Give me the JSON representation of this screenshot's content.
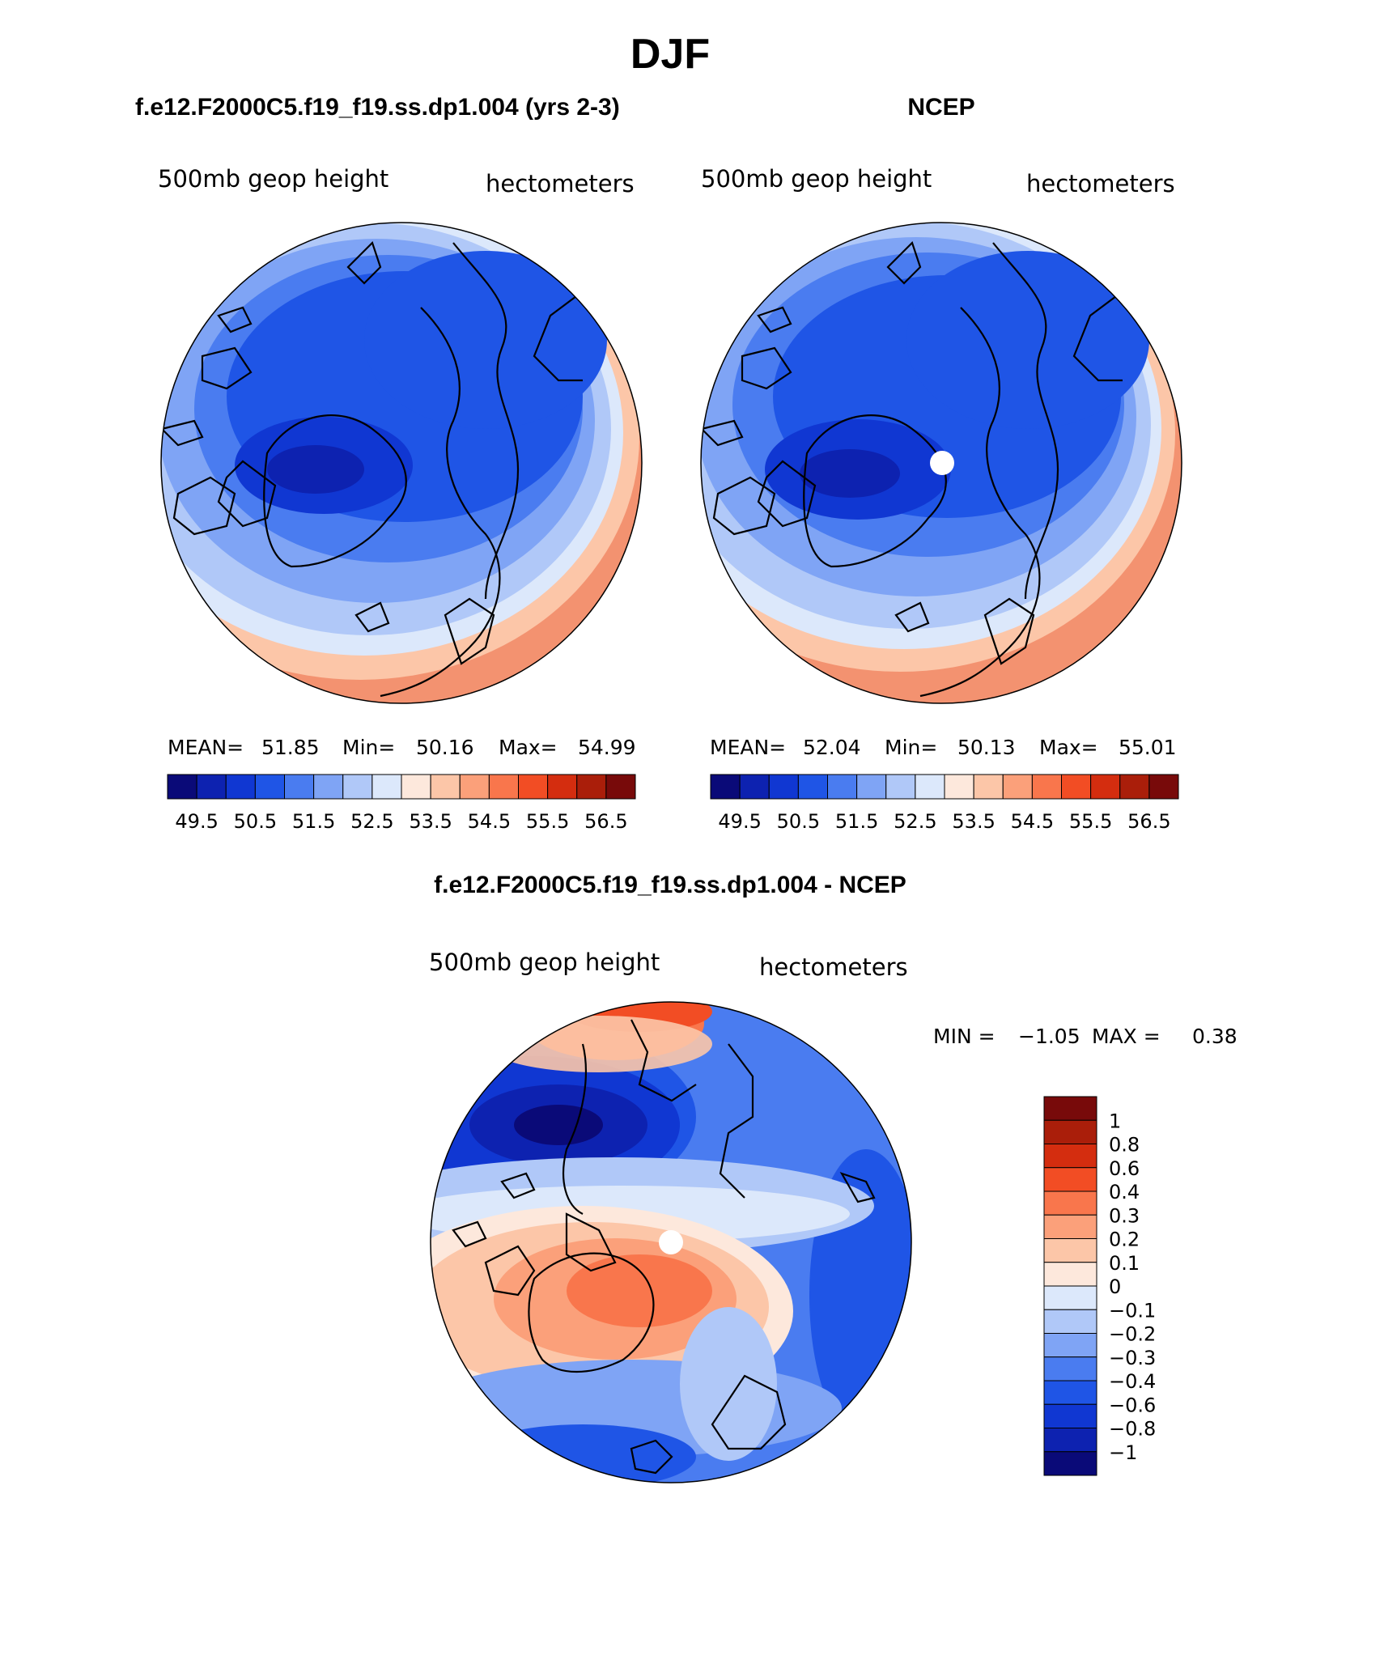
{
  "figure": {
    "season": "DJF",
    "colors": {
      "coast": "#000000",
      "pole_marker": "#ffffff",
      "border": "#000000"
    }
  },
  "panels": {
    "model": {
      "title": "f.e12.F2000C5.f19_f19.ss.dp1.004 (yrs 2-3)",
      "variable": "500mb geop height",
      "units": "hectometers",
      "stats": {
        "mean_label": "MEAN=",
        "mean": "51.85",
        "min_label": "Min=",
        "min": "50.16",
        "max_label": "Max=",
        "max": "54.99"
      }
    },
    "ncep": {
      "title": "NCEP",
      "variable": "500mb geop height",
      "units": "hectometers",
      "stats": {
        "mean_label": "MEAN=",
        "mean": "52.04",
        "min_label": "Min=",
        "min": "50.13",
        "max_label": "Max=",
        "max": "55.01"
      }
    },
    "diff": {
      "title": "f.e12.F2000C5.f19_f19.ss.dp1.004 - NCEP",
      "variable": "500mb geop height",
      "units": "hectometers",
      "stats": {
        "min_label": "MIN =",
        "min": "−1.05",
        "max_label": "MAX =",
        "max": "0.38"
      }
    }
  },
  "colorbars": {
    "absolute": {
      "colors": [
        "#0a0a78",
        "#0d22b0",
        "#1037d2",
        "#1f55e6",
        "#4a7cf0",
        "#7fa4f5",
        "#b0c8f8",
        "#dce8fb",
        "#fde8dc",
        "#fcc6a8",
        "#fba07a",
        "#f9764c",
        "#f24d24",
        "#d42d0f",
        "#aa1e0a",
        "#780a0a"
      ],
      "tick_labels": [
        "49.5",
        "50.5",
        "51.5",
        "52.5",
        "53.5",
        "54.5",
        "55.5",
        "56.5"
      ]
    },
    "difference": {
      "colors": [
        "#780a0a",
        "#aa1e0a",
        "#d42d0f",
        "#f24d24",
        "#f9764c",
        "#fba07a",
        "#fcc6a8",
        "#fde8dc",
        "#dce8fb",
        "#b0c8f8",
        "#7fa4f5",
        "#4a7cf0",
        "#1f55e6",
        "#1037d2",
        "#0d22b0",
        "#0a0a78"
      ],
      "tick_labels": [
        "1",
        "0.8",
        "0.6",
        "0.4",
        "0.3",
        "0.2",
        "0.1",
        "0",
        "−0.1",
        "−0.2",
        "−0.3",
        "−0.4",
        "−0.6",
        "−0.8",
        "−1"
      ]
    }
  }
}
